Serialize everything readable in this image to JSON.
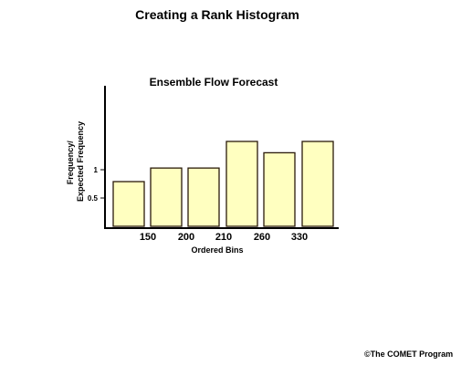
{
  "slide": {
    "title": "Creating a Rank Histogram",
    "copyright": "©The COMET Program"
  },
  "colors": {
    "bar_fill": "#ffffc0",
    "bar_stroke": "#2a1a0a",
    "axis": "#000000"
  },
  "chart_data": {
    "type": "bar",
    "title": "Ensemble Flow Forecast",
    "xlabel": "Ordered Bins",
    "ylabel": "Frequency/\nExpected Frequency",
    "ylabel_lines": [
      "Frequency/",
      "Expected Frequency"
    ],
    "bars": [
      1,
      2,
      3,
      4,
      5,
      6
    ],
    "values": [
      0.79,
      1.03,
      1.03,
      1.5,
      1.3,
      1.5
    ],
    "x_tick_labels": [
      "150",
      "200",
      "210",
      "260",
      "330"
    ],
    "y_ticks": [
      0.5,
      1
    ],
    "y_tick_labels": [
      "0.5",
      "1"
    ],
    "ylim": [
      0,
      2.5
    ],
    "grid": false,
    "legend": "none"
  }
}
